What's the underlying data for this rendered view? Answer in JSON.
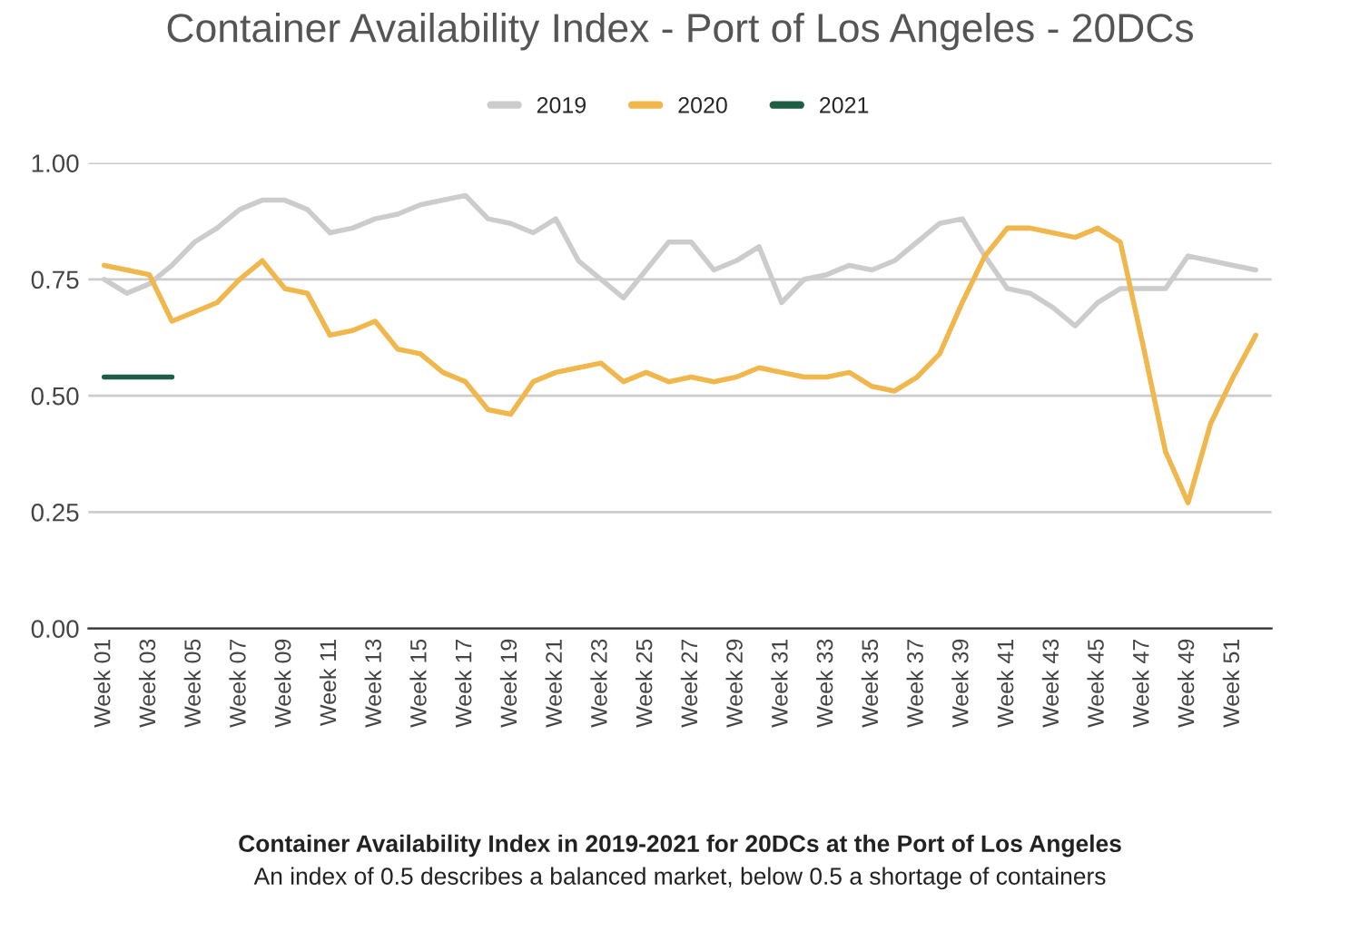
{
  "chart_data": {
    "type": "line",
    "title": "Container Availability Index - Port of Los Angeles - 20DCs",
    "categories": [
      "Week 01",
      null,
      "Week 03",
      null,
      "Week 05",
      null,
      "Week 07",
      null,
      "Week 09",
      null,
      "Week 11",
      null,
      "Week 13",
      null,
      "Week 15",
      null,
      "Week 17",
      null,
      "Week 19",
      null,
      "Week 21",
      null,
      "Week 23",
      null,
      "Week 25",
      null,
      "Week 27",
      null,
      "Week 29",
      null,
      "Week 31",
      null,
      "Week 33",
      null,
      "Week 35",
      null,
      "Week 37",
      null,
      "Week 39",
      null,
      "Week 41",
      null,
      "Week 43",
      null,
      "Week 45",
      null,
      "Week 47",
      null,
      "Week 49",
      null,
      "Week 51",
      null
    ],
    "series": [
      {
        "name": "2019",
        "color": "#cccccc",
        "values": [
          0.75,
          0.72,
          0.74,
          0.78,
          0.83,
          0.86,
          0.9,
          0.92,
          0.92,
          0.9,
          0.85,
          0.86,
          0.88,
          0.89,
          0.91,
          0.92,
          0.93,
          0.88,
          0.87,
          0.85,
          0.88,
          0.79,
          0.75,
          0.71,
          0.77,
          0.83,
          0.83,
          0.77,
          0.79,
          0.82,
          0.7,
          0.75,
          0.76,
          0.78,
          0.77,
          0.79,
          0.83,
          0.87,
          0.88,
          0.8,
          0.73,
          0.72,
          0.69,
          0.65,
          0.7,
          0.73,
          0.73,
          0.73,
          0.8,
          0.79,
          0.78,
          0.77
        ]
      },
      {
        "name": "2020",
        "color": "#f0b74d",
        "values": [
          0.78,
          0.77,
          0.76,
          0.66,
          0.68,
          0.7,
          0.75,
          0.79,
          0.73,
          0.72,
          0.63,
          0.64,
          0.66,
          0.6,
          0.59,
          0.55,
          0.53,
          0.47,
          0.46,
          0.53,
          0.55,
          0.56,
          0.57,
          0.53,
          0.55,
          0.53,
          0.54,
          0.53,
          0.54,
          0.56,
          0.55,
          0.54,
          0.54,
          0.55,
          0.52,
          0.51,
          0.54,
          0.59,
          0.7,
          0.8,
          0.86,
          0.86,
          0.85,
          0.84,
          0.86,
          0.83,
          0.61,
          0.38,
          0.27,
          0.44,
          0.54,
          0.63
        ]
      },
      {
        "name": "2021",
        "color": "#1d5e45",
        "values": [
          0.54,
          0.54,
          0.54,
          0.54,
          null,
          null,
          null,
          null,
          null,
          null,
          null,
          null,
          null,
          null,
          null,
          null,
          null,
          null,
          null,
          null,
          null,
          null,
          null,
          null,
          null,
          null,
          null,
          null,
          null,
          null,
          null,
          null,
          null,
          null,
          null,
          null,
          null,
          null,
          null,
          null,
          null,
          null,
          null,
          null,
          null,
          null,
          null,
          null,
          null,
          null,
          null,
          null
        ]
      }
    ],
    "ylim": [
      0,
      1
    ],
    "yticks": [
      {
        "value": 0,
        "label": "0.00"
      },
      {
        "value": 0.25,
        "label": "0.25"
      },
      {
        "value": 0.5,
        "label": "0.50"
      },
      {
        "value": 0.75,
        "label": "0.75"
      },
      {
        "value": 1,
        "label": "1.00"
      }
    ],
    "grid": "y",
    "legend": "top",
    "marker": "none",
    "line_style": "solid",
    "annotations": [
      "Container Availability Index in 2019-2021 for 20DCs at the Port of Los Angeles",
      "An index of 0.5 describes a balanced market, below 0.5 a shortage of containers"
    ]
  }
}
